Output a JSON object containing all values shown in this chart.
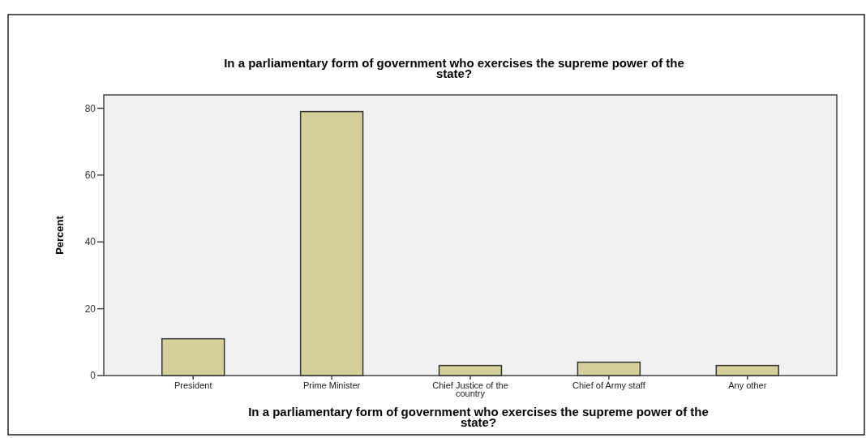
{
  "chart_data": {
    "type": "bar",
    "title": "In a parliamentary form of government who exercises the supreme power of the state?",
    "xlabel": "In a parliamentary form of government who exercises the supreme power of the state?",
    "ylabel": "Percent",
    "categories": [
      "President",
      "Prime Minister",
      "Chief Justice of the country",
      "Chief of Army staff",
      "Any other"
    ],
    "values": [
      11,
      79,
      3,
      4,
      3
    ],
    "color": "#d5d09a",
    "ylim": [
      0,
      84
    ],
    "yticks": [
      0,
      20,
      40,
      60,
      80
    ],
    "grid": false
  }
}
